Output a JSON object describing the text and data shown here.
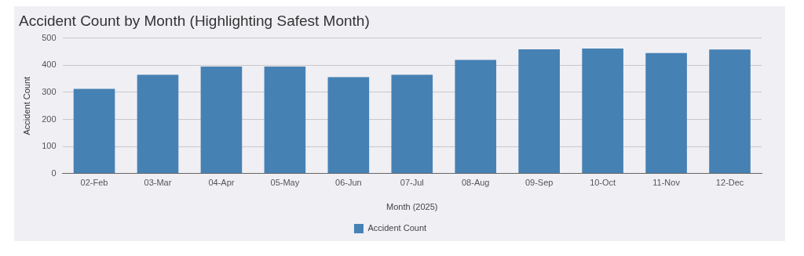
{
  "chart_data": {
    "type": "bar",
    "title": "Accident Count by Month (Highlighting Safest Month)",
    "xlabel": "Month (2025)",
    "ylabel": "Accident Count",
    "categories": [
      "02-Feb",
      "03-Mar",
      "04-Apr",
      "05-May",
      "06-Jun",
      "07-Jul",
      "08-Aug",
      "09-Sep",
      "10-Oct",
      "11-Nov",
      "12-Dec"
    ],
    "series": [
      {
        "name": "Accident Count",
        "color": "#4681b4",
        "values": [
          313,
          365,
          395,
          395,
          356,
          365,
          420,
          459,
          462,
          445,
          458
        ]
      }
    ],
    "ylim": [
      0,
      500
    ],
    "yticks": [
      0,
      100,
      200,
      300,
      400,
      500
    ],
    "grid": "y",
    "legend": "bottom"
  }
}
